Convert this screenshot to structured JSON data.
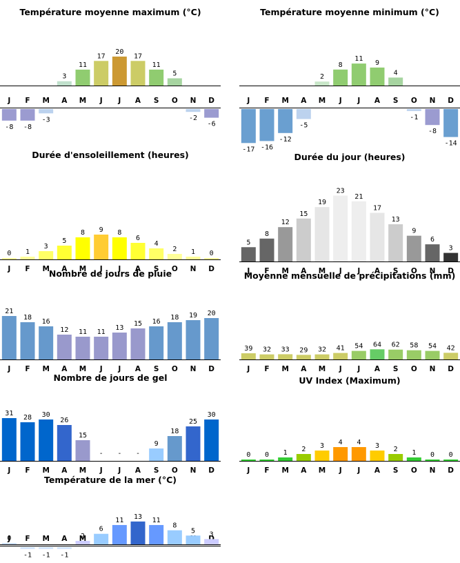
{
  "months": [
    "J",
    "F",
    "M",
    "A",
    "M",
    "J",
    "J",
    "A",
    "S",
    "O",
    "N",
    "D"
  ],
  "chart_data": [
    {
      "id": "tmax",
      "type": "bar",
      "title": "Température moyenne maximum (°C)",
      "categories": [
        "J",
        "F",
        "M",
        "A",
        "M",
        "J",
        "J",
        "A",
        "S",
        "O",
        "N",
        "D"
      ],
      "values": [
        -8,
        -8,
        -3,
        3,
        11,
        17,
        20,
        17,
        11,
        5,
        -2,
        -6
      ],
      "labels": [
        "-8",
        "-8",
        "-3",
        "3",
        "11",
        "17",
        "20",
        "17",
        "11",
        "5",
        "-2",
        "-6"
      ],
      "colors": [
        "#9b9bd0",
        "#9b9bd0",
        "#bcd2ee",
        "#c0e0cc",
        "#90cc70",
        "#cccc66",
        "#cc9933",
        "#cccc66",
        "#90cc70",
        "#a6d4a0",
        "#bcd2ee",
        "#9b9bd0"
      ]
    },
    {
      "id": "tmin",
      "type": "bar",
      "title": "Température moyenne minimum (°C)",
      "categories": [
        "J",
        "F",
        "M",
        "A",
        "M",
        "J",
        "J",
        "A",
        "S",
        "O",
        "N",
        "D"
      ],
      "values": [
        -17,
        -16,
        -12,
        -5,
        2,
        8,
        11,
        9,
        4,
        -1,
        -8,
        -14
      ],
      "labels": [
        "-17",
        "-16",
        "-12",
        "-5",
        "2",
        "8",
        "11",
        "9",
        "4",
        "-1",
        "-8",
        "-14"
      ],
      "colors": [
        "#6a9fd0",
        "#6a9fd0",
        "#6a9fd0",
        "#bcd2ee",
        "#c8e6c8",
        "#90cc70",
        "#90cc70",
        "#90cc70",
        "#a6d4a0",
        "#bcd2ee",
        "#9b9bd0",
        "#6a9fd0"
      ]
    },
    {
      "id": "sun",
      "type": "bar",
      "title": "Durée d'ensoleillement (heures)",
      "categories": [
        "J",
        "F",
        "M",
        "A",
        "M",
        "J",
        "J",
        "A",
        "S",
        "O",
        "N",
        "D"
      ],
      "values": [
        0,
        1,
        3,
        5,
        8,
        9,
        8,
        6,
        4,
        2,
        1,
        0
      ],
      "labels": [
        "0",
        "1",
        "3",
        "5",
        "8",
        "9",
        "8",
        "6",
        "4",
        "2",
        "1",
        "0"
      ],
      "colors": [
        "#ffff99",
        "#ffff99",
        "#ffff66",
        "#ffff33",
        "#ffff00",
        "#ffcc33",
        "#ffff00",
        "#ffff33",
        "#ffff66",
        "#ffff99",
        "#ffff99",
        "#ffff99"
      ]
    },
    {
      "id": "day",
      "type": "bar",
      "title": "Durée du jour (heures)",
      "categories": [
        "J",
        "F",
        "M",
        "A",
        "M",
        "J",
        "J",
        "A",
        "S",
        "O",
        "N",
        "D"
      ],
      "values": [
        5,
        8,
        12,
        15,
        19,
        23,
        21,
        17,
        13,
        9,
        6,
        3
      ],
      "labels": [
        "5",
        "8",
        "12",
        "15",
        "19",
        "23",
        "21",
        "17",
        "13",
        "9",
        "6",
        "3"
      ],
      "colors": [
        "#666666",
        "#666666",
        "#999999",
        "#cccccc",
        "#e6e6e6",
        "#eeeeee",
        "#eeeeee",
        "#e6e6e6",
        "#cccccc",
        "#999999",
        "#666666",
        "#333333"
      ]
    },
    {
      "id": "rain",
      "type": "bar",
      "title": "Nombre de jours de pluie",
      "categories": [
        "J",
        "F",
        "M",
        "A",
        "M",
        "J",
        "J",
        "A",
        "S",
        "O",
        "N",
        "D"
      ],
      "values": [
        21,
        18,
        16,
        12,
        11,
        11,
        13,
        15,
        16,
        18,
        19,
        20
      ],
      "labels": [
        "21",
        "18",
        "16",
        "12",
        "11",
        "11",
        "13",
        "15",
        "16",
        "18",
        "19",
        "20"
      ],
      "colors": [
        "#6699cc",
        "#6699cc",
        "#6699cc",
        "#9999cc",
        "#9999cc",
        "#9999cc",
        "#9999cc",
        "#9999cc",
        "#6699cc",
        "#6699cc",
        "#6699cc",
        "#6699cc"
      ]
    },
    {
      "id": "precip",
      "type": "bar",
      "title": "Moyenne mensuelle de précipitations (mm)",
      "categories": [
        "J",
        "F",
        "M",
        "A",
        "M",
        "J",
        "J",
        "A",
        "S",
        "O",
        "N",
        "D"
      ],
      "values": [
        39,
        32,
        33,
        29,
        32,
        41,
        54,
        64,
        62,
        58,
        54,
        42
      ],
      "labels": [
        "39",
        "32",
        "33",
        "29",
        "32",
        "41",
        "54",
        "64",
        "62",
        "58",
        "54",
        "42"
      ],
      "colors": [
        "#cccc66",
        "#cccc66",
        "#cccc66",
        "#cccc66",
        "#cccc66",
        "#cccc66",
        "#99cc66",
        "#66cc66",
        "#99cc66",
        "#99cc66",
        "#99cc66",
        "#cccc66"
      ]
    },
    {
      "id": "frost",
      "type": "bar",
      "title": "Nombre de jours de gel",
      "categories": [
        "J",
        "F",
        "M",
        "A",
        "M",
        "J",
        "J",
        "A",
        "S",
        "O",
        "N",
        "D"
      ],
      "values": [
        31,
        28,
        30,
        26,
        15,
        0,
        0,
        0,
        9,
        18,
        25,
        30
      ],
      "labels": [
        "31",
        "28",
        "30",
        "26",
        "15",
        "-",
        "-",
        "-",
        "9",
        "18",
        "25",
        "30"
      ],
      "colors": [
        "#0066cc",
        "#0066cc",
        "#0066cc",
        "#3366cc",
        "#9999cc",
        "#ffffff",
        "#ffffff",
        "#ffffff",
        "#99ccff",
        "#6699cc",
        "#3366cc",
        "#0066cc"
      ]
    },
    {
      "id": "uv",
      "type": "bar",
      "title": "UV Index (Maximum)",
      "categories": [
        "J",
        "F",
        "M",
        "A",
        "M",
        "J",
        "J",
        "A",
        "S",
        "O",
        "N",
        "D"
      ],
      "values": [
        0,
        0,
        1,
        2,
        3,
        4,
        4,
        3,
        2,
        1,
        0,
        0
      ],
      "labels": [
        "0",
        "0",
        "1",
        "2",
        "3",
        "4",
        "4",
        "3",
        "2",
        "1",
        "0",
        "0"
      ],
      "colors": [
        "#33cc33",
        "#33cc33",
        "#33cc33",
        "#99cc00",
        "#ffcc00",
        "#ff9900",
        "#ff9900",
        "#ffcc00",
        "#99cc00",
        "#33cc33",
        "#33cc33",
        "#33cc33"
      ]
    },
    {
      "id": "sea",
      "type": "bar",
      "title": "Température de la mer (°C)",
      "categories": [
        "J",
        "F",
        "M",
        "A",
        "M",
        "J",
        "J",
        "A",
        "S",
        "O",
        "N",
        "D"
      ],
      "values": [
        0,
        -1,
        -1,
        -1,
        2,
        6,
        11,
        13,
        11,
        8,
        5,
        3
      ],
      "labels": [
        "0",
        "-1",
        "-1",
        "-1",
        "2",
        "6",
        "11",
        "13",
        "11",
        "8",
        "5",
        "3"
      ],
      "colors": [
        "#cce0ff",
        "#cce0ff",
        "#cce0ff",
        "#cce0ff",
        "#ccccff",
        "#99ccff",
        "#6699ff",
        "#3366cc",
        "#6699ff",
        "#99ccff",
        "#99ccff",
        "#ccccff"
      ]
    }
  ]
}
